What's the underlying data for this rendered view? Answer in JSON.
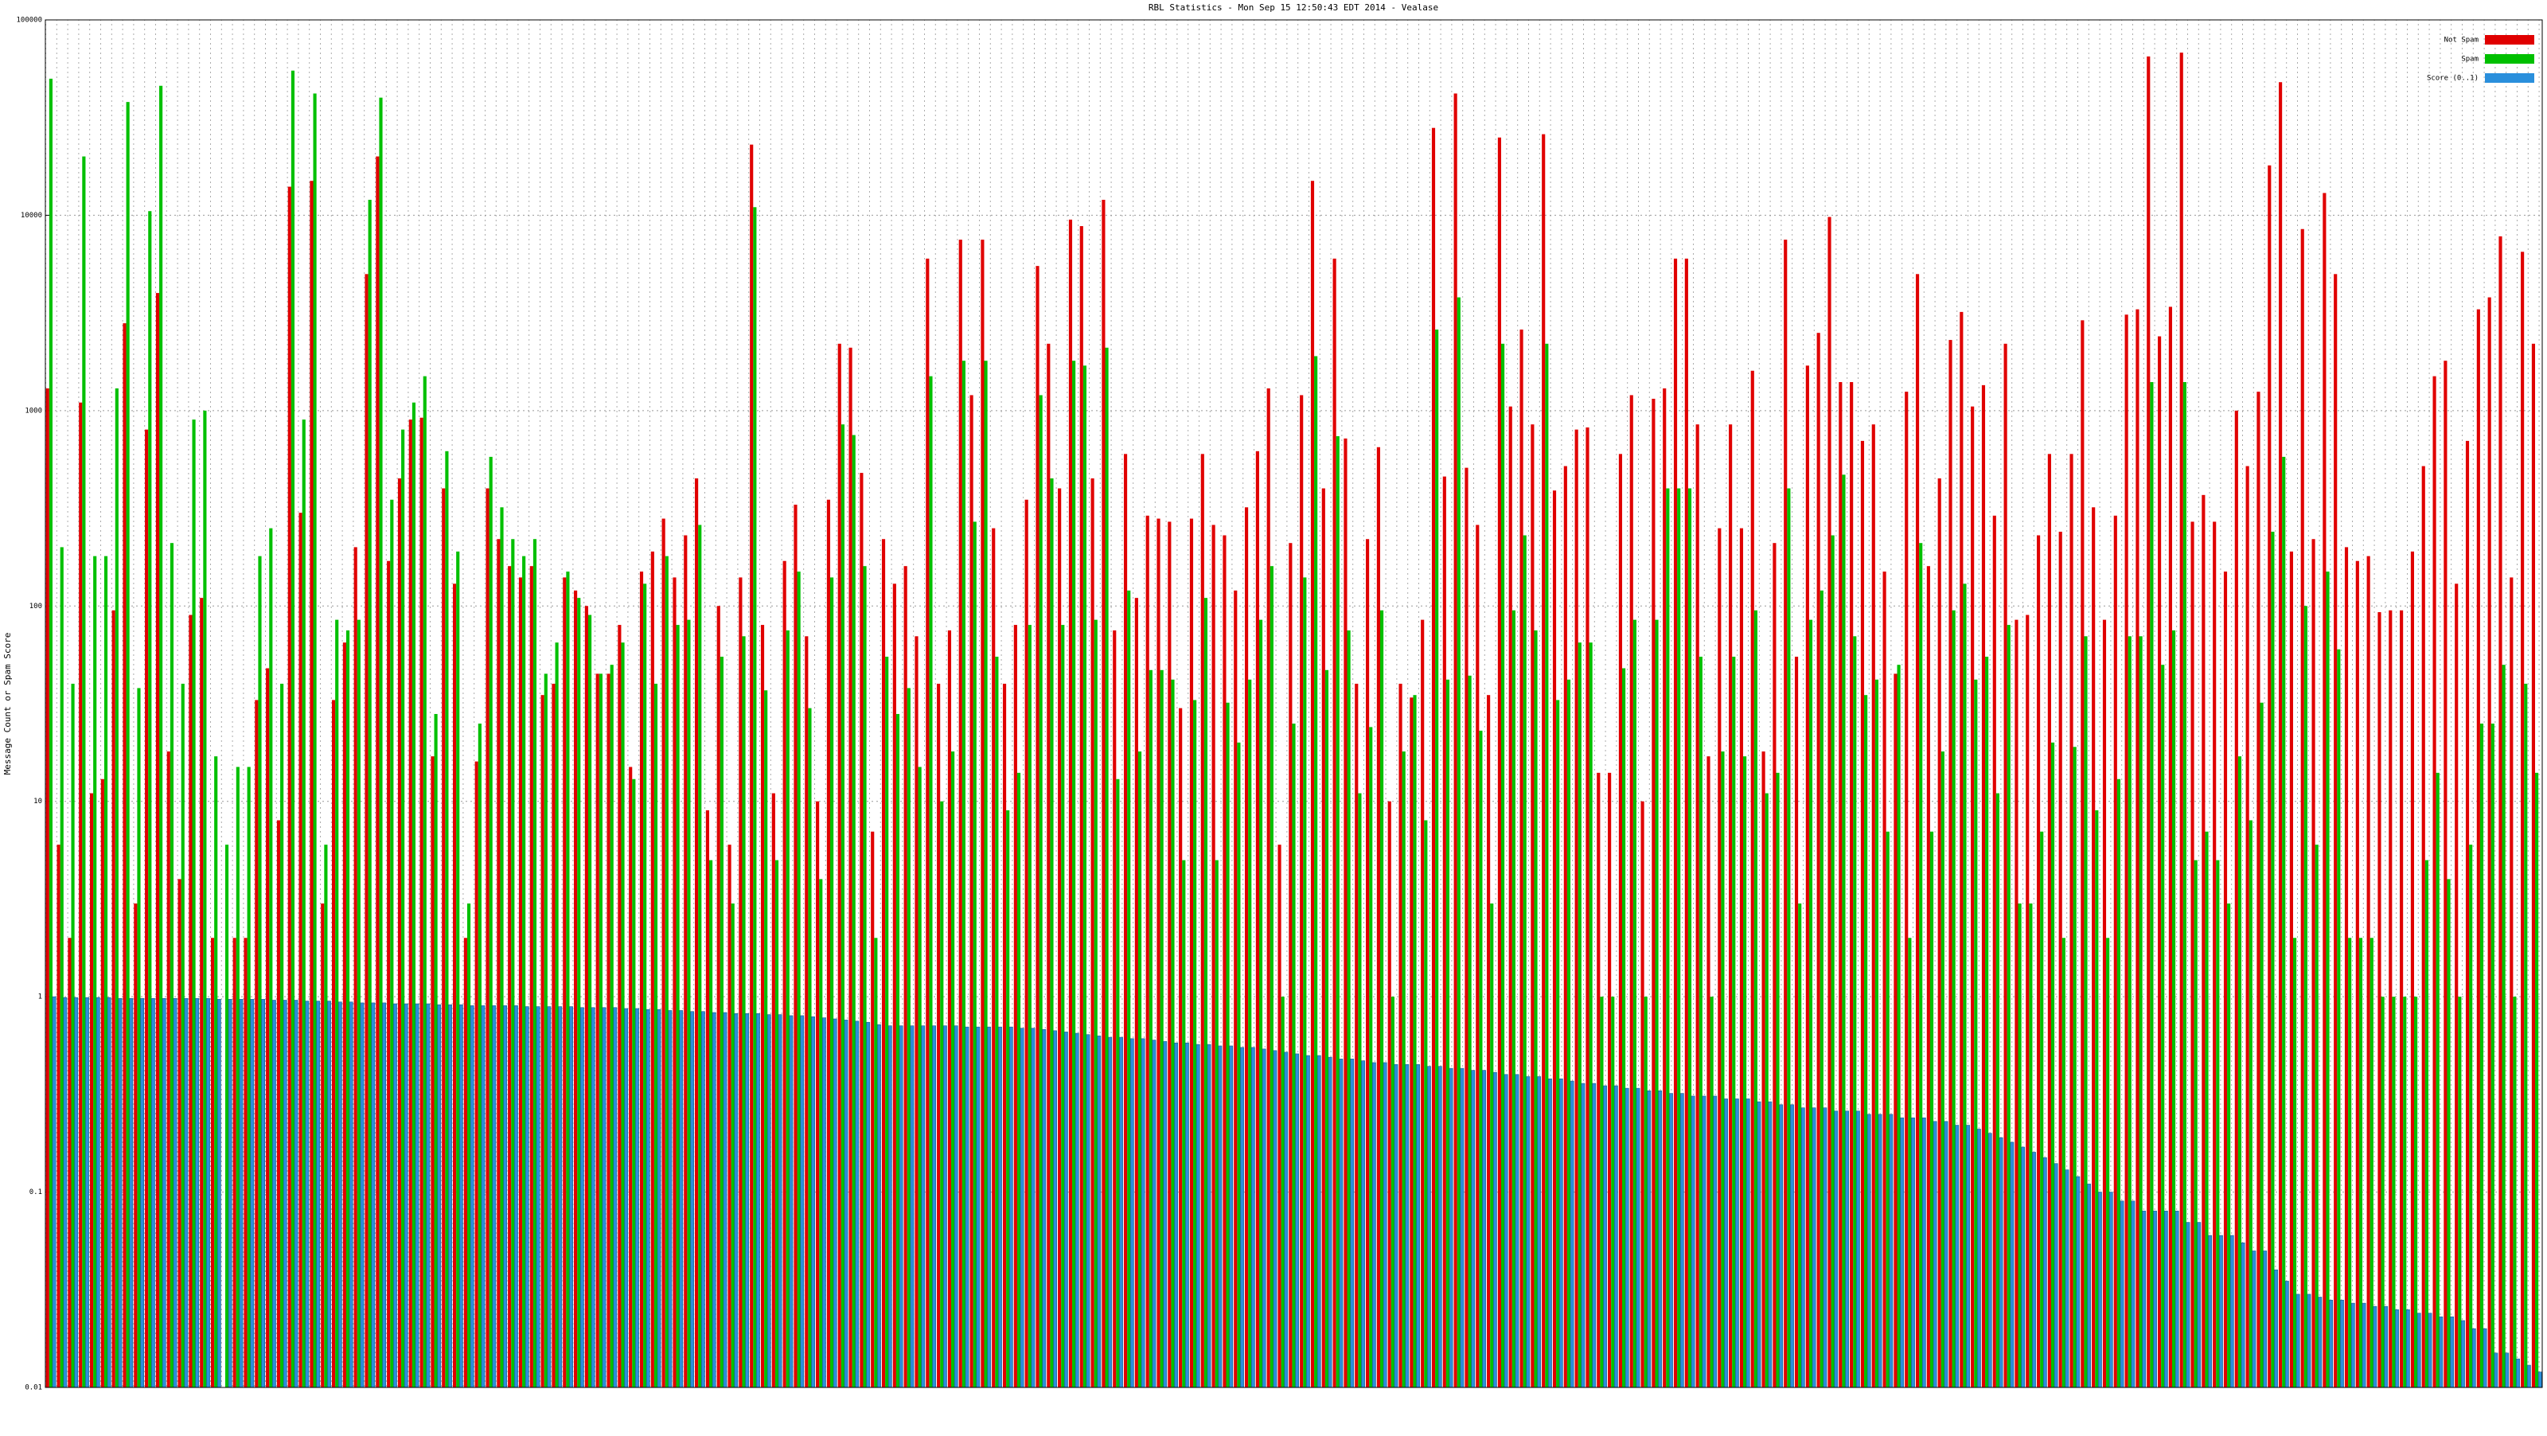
{
  "chart_data": {
    "type": "bar",
    "title": "RBL Statistics - Mon Sep 15 12:50:43 EDT 2014 - Vealase",
    "y_label": "Message Count or Spam Score",
    "log_scale": true,
    "grid": true,
    "legend_position": "top-right",
    "ylim": [
      0.01,
      100000
    ],
    "yticks": [
      0.01,
      0.1,
      1,
      10,
      100,
      1000,
      10000,
      100000
    ],
    "series": [
      {
        "name": "Not Spam",
        "color": "#e00000",
        "values": [
          1300,
          6,
          2,
          1100,
          11,
          13,
          95,
          2800,
          3,
          800,
          4000,
          18,
          4,
          90,
          110,
          2,
          null,
          2,
          2,
          33,
          48,
          8,
          14000,
          300,
          15000,
          3,
          33,
          65,
          200,
          5000,
          20000,
          170,
          450,
          900,
          920,
          17,
          400,
          130,
          2,
          16,
          400,
          220,
          160,
          140,
          160,
          35,
          40,
          140,
          120,
          100,
          45,
          45,
          80,
          15,
          150,
          190,
          280,
          140,
          230,
          450,
          9,
          100,
          6,
          140,
          23000,
          80,
          11,
          170,
          330,
          70,
          10,
          350,
          2200,
          2100,
          480,
          7,
          220,
          130,
          160,
          70,
          6000,
          40,
          75,
          7500,
          1200,
          7500,
          250,
          40,
          80,
          350,
          5500,
          2200,
          400,
          9500,
          8800,
          450,
          12000,
          75,
          600,
          110,
          290,
          280,
          270,
          30,
          280,
          600,
          260,
          230,
          120,
          320,
          620,
          1300,
          6,
          210,
          1200,
          15000,
          400,
          6000,
          720,
          40,
          220,
          650,
          10,
          40,
          34,
          85,
          28000,
          460,
          42000,
          510,
          260,
          35,
          25000,
          1050,
          2600,
          850,
          26000,
          390,
          520,
          800,
          820,
          14,
          14,
          600,
          1200,
          10,
          1150,
          1300,
          6000,
          6000,
          850,
          17,
          250,
          850,
          250,
          1600,
          18,
          210,
          7500,
          55,
          1700,
          2500,
          9800,
          1400,
          1400,
          700,
          850,
          150,
          45,
          1250,
          5000,
          160,
          450,
          2300,
          3200,
          1050,
          1350,
          290,
          2200,
          85,
          90,
          230,
          600,
          240,
          600,
          2900,
          320,
          85,
          290,
          3100,
          3300,
          65000,
          2400,
          3400,
          68000,
          270,
          370,
          270,
          150,
          1000,
          520,
          1250,
          18000,
          48000,
          190,
          8500,
          220,
          13000,
          5000,
          200,
          170,
          180,
          93,
          95,
          95,
          190,
          520,
          1500,
          1800,
          130,
          700,
          3300,
          3800,
          7800,
          140,
          6500,
          2200
        ]
      },
      {
        "name": "Spam",
        "color": "#00c000",
        "values": [
          50000,
          200,
          40,
          20000,
          180,
          180,
          1300,
          38000,
          38,
          10500,
          46000,
          210,
          40,
          900,
          1000,
          17,
          6,
          15,
          15,
          180,
          250,
          40,
          55000,
          900,
          42000,
          6,
          85,
          75,
          85,
          12000,
          40000,
          350,
          800,
          1100,
          1500,
          28,
          620,
          190,
          3,
          25,
          580,
          320,
          220,
          180,
          220,
          45,
          65,
          150,
          110,
          90,
          45,
          50,
          65,
          13,
          130,
          40,
          180,
          80,
          85,
          260,
          5,
          55,
          3,
          70,
          11000,
          37,
          5,
          75,
          150,
          30,
          4,
          140,
          850,
          750,
          160,
          2,
          55,
          28,
          38,
          15,
          1500,
          10,
          18,
          1800,
          270,
          1800,
          55,
          9,
          14,
          80,
          1200,
          450,
          80,
          1800,
          1700,
          85,
          2100,
          13,
          120,
          18,
          47,
          47,
          42,
          5,
          33,
          110,
          5,
          32,
          20,
          42,
          85,
          160,
          1,
          25,
          140,
          1900,
          47,
          740,
          75,
          11,
          24,
          95,
          1,
          18,
          35,
          8,
          2600,
          42,
          3800,
          44,
          23,
          3,
          2200,
          95,
          230,
          75,
          2200,
          33,
          42,
          65,
          65,
          1,
          1,
          48,
          85,
          1,
          85,
          400,
          400,
          400,
          55,
          1,
          18,
          55,
          17,
          95,
          11,
          14,
          400,
          3,
          85,
          120,
          230,
          470,
          70,
          35,
          42,
          7,
          50,
          2,
          210,
          7,
          18,
          95,
          130,
          42,
          55,
          11,
          80,
          3,
          3,
          7,
          20,
          2,
          19,
          70,
          9,
          2,
          13,
          70,
          70,
          1400,
          50,
          75,
          1400,
          5,
          7,
          5,
          3,
          17,
          8,
          32,
          240,
          580,
          2,
          100,
          6,
          150,
          60,
          2,
          2,
          2,
          1,
          1,
          1,
          1,
          5,
          14,
          4,
          1,
          6,
          25,
          25,
          50,
          1,
          40,
          14
        ]
      },
      {
        "name": "Score (0..1)",
        "color": "#2a8fdc",
        "values": [
          1,
          0.99,
          0.99,
          0.99,
          0.99,
          0.99,
          0.98,
          0.98,
          0.98,
          0.98,
          0.98,
          0.98,
          0.98,
          0.98,
          0.98,
          0.97,
          0.97,
          0.97,
          0.97,
          0.97,
          0.96,
          0.96,
          0.96,
          0.95,
          0.95,
          0.95,
          0.94,
          0.94,
          0.93,
          0.93,
          0.93,
          0.92,
          0.92,
          0.92,
          0.92,
          0.91,
          0.91,
          0.91,
          0.9,
          0.9,
          0.9,
          0.9,
          0.9,
          0.89,
          0.89,
          0.89,
          0.89,
          0.89,
          0.88,
          0.88,
          0.88,
          0.88,
          0.87,
          0.87,
          0.86,
          0.86,
          0.85,
          0.85,
          0.84,
          0.84,
          0.83,
          0.83,
          0.82,
          0.82,
          0.82,
          0.81,
          0.81,
          0.8,
          0.8,
          0.79,
          0.78,
          0.77,
          0.76,
          0.75,
          0.74,
          0.72,
          0.71,
          0.71,
          0.71,
          0.71,
          0.71,
          0.71,
          0.71,
          0.7,
          0.7,
          0.7,
          0.7,
          0.7,
          0.69,
          0.69,
          0.68,
          0.67,
          0.66,
          0.65,
          0.64,
          0.63,
          0.62,
          0.62,
          0.61,
          0.61,
          0.6,
          0.59,
          0.58,
          0.58,
          0.57,
          0.57,
          0.56,
          0.56,
          0.55,
          0.55,
          0.54,
          0.53,
          0.52,
          0.51,
          0.5,
          0.5,
          0.49,
          0.48,
          0.48,
          0.47,
          0.46,
          0.46,
          0.45,
          0.45,
          0.45,
          0.44,
          0.44,
          0.43,
          0.43,
          0.42,
          0.42,
          0.41,
          0.4,
          0.4,
          0.39,
          0.39,
          0.38,
          0.38,
          0.37,
          0.36,
          0.36,
          0.35,
          0.35,
          0.34,
          0.34,
          0.33,
          0.33,
          0.32,
          0.32,
          0.31,
          0.31,
          0.31,
          0.3,
          0.3,
          0.3,
          0.29,
          0.29,
          0.28,
          0.28,
          0.27,
          0.27,
          0.27,
          0.26,
          0.26,
          0.26,
          0.25,
          0.25,
          0.25,
          0.24,
          0.24,
          0.24,
          0.23,
          0.23,
          0.22,
          0.22,
          0.21,
          0.2,
          0.19,
          0.18,
          0.17,
          0.16,
          0.15,
          0.14,
          0.13,
          0.12,
          0.11,
          0.1,
          0.1,
          0.09,
          0.09,
          0.08,
          0.08,
          0.08,
          0.08,
          0.07,
          0.07,
          0.06,
          0.06,
          0.06,
          0.055,
          0.05,
          0.05,
          0.04,
          0.035,
          0.03,
          0.03,
          0.029,
          0.028,
          0.028,
          0.027,
          0.027,
          0.026,
          0.026,
          0.025,
          0.025,
          0.024,
          0.024,
          0.023,
          0.023,
          0.022,
          0.02,
          0.02,
          0.015,
          0.015,
          0.014,
          0.013,
          0.012
        ]
      }
    ]
  }
}
